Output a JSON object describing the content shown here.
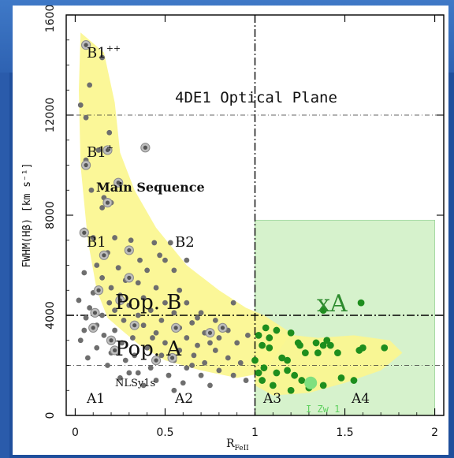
{
  "chart_data": {
    "type": "scatter",
    "title": "4DE1 Optical Plane",
    "xlabel_main": "R",
    "xlabel_sub": "FeII",
    "ylabel": "FWHM(Hβ) [km s⁻¹]",
    "xlim": [
      -0.05,
      2.05
    ],
    "ylim": [
      0,
      16000
    ],
    "xticks": [
      "0",
      "0.5",
      "1",
      "1.5",
      "2"
    ],
    "yticks": [
      "0",
      "4000",
      "8000",
      "12000",
      "16000"
    ],
    "region_labels": {
      "b1pp": "B1",
      "b1pp_sup": "++",
      "b1p": "B1",
      "b1p_sup": "+",
      "main_sequence": "Main Sequence",
      "b1": "B1",
      "b2": "B2",
      "pop_b": "Pop. B",
      "pop_a": "Pop. A",
      "nlsy1s": "NLSy1s",
      "a1": "A1",
      "a2": "A2",
      "a3": "A3",
      "a4": "A4",
      "xa": "xA",
      "i_zw": "I Zw 1"
    },
    "colors": {
      "main_sequence_fill": "#fbf68f",
      "xa_box": "#d6f2cc",
      "gray_points": "#6e6e6e",
      "green_points": "#1e8e1e",
      "i_zw1": "#7fe07f"
    },
    "gray_points": [
      [
        0.06,
        14800
      ],
      [
        0.15,
        14300
      ],
      [
        0.08,
        13200
      ],
      [
        0.03,
        12400
      ],
      [
        0.06,
        11900
      ],
      [
        0.19,
        11300
      ],
      [
        0.13,
        10600
      ],
      [
        0.39,
        10700
      ],
      [
        0.06,
        10200
      ],
      [
        0.24,
        9300
      ],
      [
        0.09,
        9000
      ],
      [
        0.15,
        8300
      ],
      [
        0.16,
        8700
      ],
      [
        0.2,
        8500
      ],
      [
        0.05,
        7400
      ],
      [
        0.1,
        7100
      ],
      [
        0.22,
        7100
      ],
      [
        0.31,
        7000
      ],
      [
        0.44,
        6900
      ],
      [
        0.53,
        6900
      ],
      [
        0.18,
        6500
      ],
      [
        0.3,
        6600
      ],
      [
        0.36,
        6200
      ],
      [
        0.47,
        6400
      ],
      [
        0.12,
        6000
      ],
      [
        0.24,
        5900
      ],
      [
        0.4,
        5800
      ],
      [
        0.55,
        5800
      ],
      [
        0.05,
        5700
      ],
      [
        0.15,
        5500
      ],
      [
        0.28,
        5400
      ],
      [
        0.35,
        5300
      ],
      [
        0.2,
        5100
      ],
      [
        0.45,
        5100
      ],
      [
        0.58,
        5000
      ],
      [
        0.1,
        4900
      ],
      [
        0.25,
        4800
      ],
      [
        0.38,
        4700
      ],
      [
        0.02,
        4600
      ],
      [
        0.19,
        4500
      ],
      [
        0.3,
        4400
      ],
      [
        0.5,
        4500
      ],
      [
        0.62,
        4500
      ],
      [
        0.08,
        4300
      ],
      [
        0.22,
        4200
      ],
      [
        0.42,
        4200
      ],
      [
        0.55,
        4100
      ],
      [
        0.7,
        4100
      ],
      [
        0.15,
        4000
      ],
      [
        0.35,
        4000
      ],
      [
        0.06,
        3900
      ],
      [
        0.27,
        3800
      ],
      [
        0.48,
        3800
      ],
      [
        0.65,
        3700
      ],
      [
        0.78,
        3800
      ],
      [
        0.12,
        3600
      ],
      [
        0.38,
        3600
      ],
      [
        0.58,
        3500
      ],
      [
        0.05,
        3400
      ],
      [
        0.22,
        3400
      ],
      [
        0.45,
        3300
      ],
      [
        0.72,
        3300
      ],
      [
        0.85,
        3400
      ],
      [
        0.16,
        3200
      ],
      [
        0.32,
        3100
      ],
      [
        0.62,
        3100
      ],
      [
        0.8,
        3100
      ],
      [
        0.03,
        3000
      ],
      [
        0.26,
        2900
      ],
      [
        0.5,
        2900
      ],
      [
        0.68,
        2800
      ],
      [
        0.9,
        2900
      ],
      [
        0.12,
        2700
      ],
      [
        0.4,
        2700
      ],
      [
        0.58,
        2600
      ],
      [
        0.78,
        2600
      ],
      [
        0.2,
        2500
      ],
      [
        0.33,
        2400
      ],
      [
        0.48,
        2400
      ],
      [
        0.66,
        2400
      ],
      [
        0.85,
        2300
      ],
      [
        0.07,
        2300
      ],
      [
        0.28,
        2200
      ],
      [
        0.55,
        2200
      ],
      [
        0.72,
        2100
      ],
      [
        0.92,
        2100
      ],
      [
        0.18,
        2000
      ],
      [
        0.42,
        1900
      ],
      [
        0.62,
        1900
      ],
      [
        0.8,
        1800
      ],
      [
        0.35,
        1700
      ],
      [
        0.52,
        1600
      ],
      [
        0.7,
        1600
      ],
      [
        0.88,
        1600
      ],
      [
        0.25,
        1500
      ],
      [
        0.45,
        1400
      ],
      [
        0.6,
        1300
      ],
      [
        0.95,
        1400
      ],
      [
        0.38,
        1200
      ],
      [
        0.75,
        1200
      ],
      [
        0.55,
        1000
      ],
      [
        0.3,
        1700
      ],
      [
        0.68,
        3900
      ],
      [
        0.75,
        2900
      ],
      [
        0.96,
        3200
      ],
      [
        0.88,
        4500
      ],
      [
        0.62,
        6200
      ],
      [
        0.5,
        6200
      ],
      [
        0.65,
        2000
      ],
      [
        0.43,
        3100
      ]
    ],
    "circled_points": [
      [
        0.06,
        14800
      ],
      [
        0.18,
        10600
      ],
      [
        0.39,
        10700
      ],
      [
        0.06,
        10000
      ],
      [
        0.24,
        9300
      ],
      [
        0.18,
        8500
      ],
      [
        0.05,
        7300
      ],
      [
        0.16,
        6400
      ],
      [
        0.3,
        6600
      ],
      [
        0.13,
        5000
      ],
      [
        0.3,
        5500
      ],
      [
        0.25,
        4600
      ],
      [
        0.11,
        4100
      ],
      [
        0.2,
        3000
      ],
      [
        0.1,
        3500
      ],
      [
        0.33,
        3600
      ],
      [
        0.56,
        3500
      ],
      [
        0.75,
        3300
      ],
      [
        0.22,
        2600
      ],
      [
        0.54,
        2300
      ],
      [
        0.45,
        2200
      ],
      [
        0.82,
        3500
      ]
    ],
    "green_points": [
      [
        1.02,
        3200
      ],
      [
        1.06,
        3500
      ],
      [
        1.12,
        3400
      ],
      [
        1.2,
        3300
      ],
      [
        1.24,
        2900
      ],
      [
        1.28,
        2500
      ],
      [
        1.34,
        2900
      ],
      [
        1.38,
        2800
      ],
      [
        1.42,
        2800
      ],
      [
        1.46,
        2500
      ],
      [
        1.08,
        2700
      ],
      [
        1.15,
        2300
      ],
      [
        1.0,
        2200
      ],
      [
        1.05,
        1900
      ],
      [
        1.12,
        1700
      ],
      [
        1.18,
        1800
      ],
      [
        1.22,
        1600
      ],
      [
        1.26,
        1400
      ],
      [
        1.32,
        1300
      ],
      [
        1.38,
        1200
      ],
      [
        1.02,
        1700
      ],
      [
        1.04,
        1400
      ],
      [
        1.1,
        1200
      ],
      [
        1.2,
        1000
      ],
      [
        1.3,
        1100
      ],
      [
        1.48,
        1500
      ],
      [
        1.58,
        2600
      ],
      [
        1.6,
        2700
      ],
      [
        1.72,
        2700
      ],
      [
        1.59,
        4500
      ],
      [
        1.38,
        4200
      ],
      [
        1.55,
        1400
      ],
      [
        1.04,
        2800
      ],
      [
        1.08,
        3100
      ],
      [
        1.35,
        2500
      ],
      [
        1.4,
        3000
      ],
      [
        1.25,
        2800
      ],
      [
        1.18,
        2200
      ]
    ],
    "i_zw1_point": [
      1.31,
      1300
    ],
    "xa_box": {
      "x0": 1.0,
      "x1": 2.0,
      "y0": 0,
      "y1": 7800
    },
    "divider_x": 1.0,
    "divider_y": 4000,
    "dashed_y": [
      2000,
      12000
    ]
  }
}
